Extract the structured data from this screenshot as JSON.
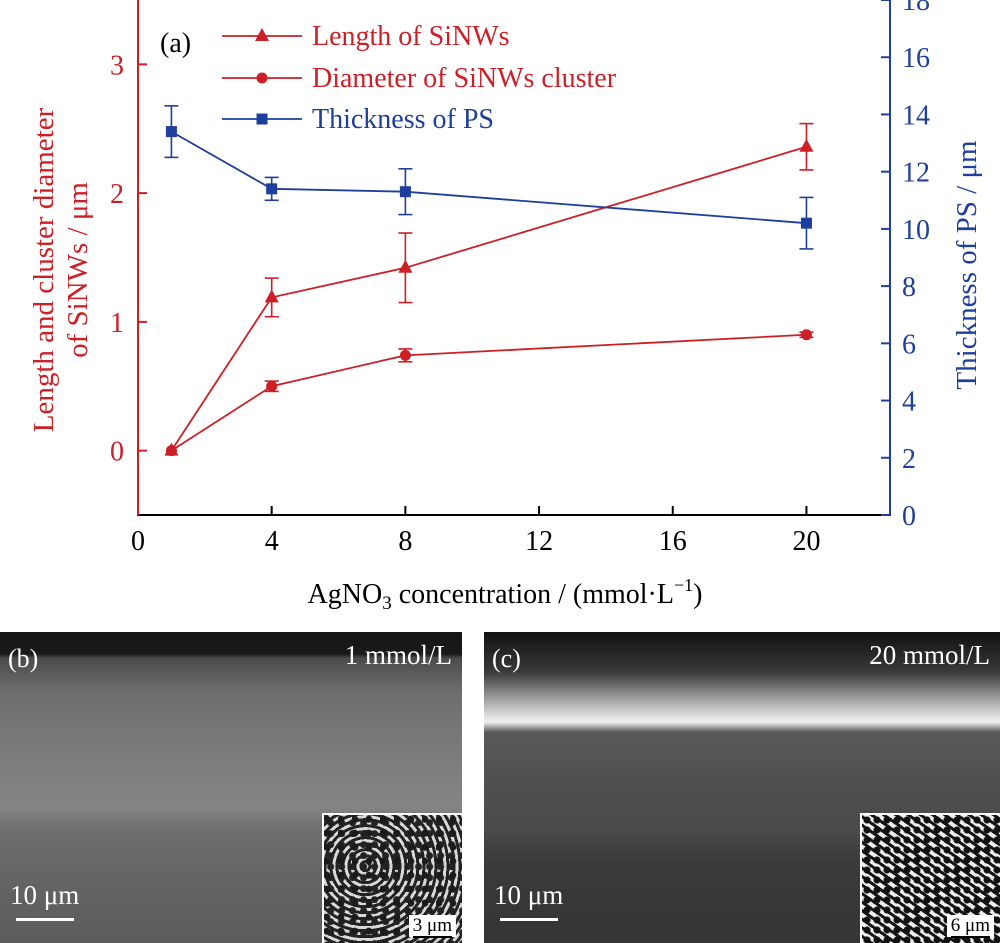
{
  "chart_data": {
    "type": "line",
    "panel_label": "(a)",
    "xlabel_main": "AgNO",
    "xlabel_sub": "3",
    "xlabel_rest": " concentration / (mmol·L",
    "xlabel_sup": "−1",
    "xlabel_end": ")",
    "ylabel_left_line1": "Length and cluster diameter",
    "ylabel_left_line2": "of SiNWs / μm",
    "ylabel_right": "Thickness of PS / μm",
    "xlim": [
      0,
      22.5
    ],
    "ylim_left": [
      -0.5,
      3.5
    ],
    "ylim_right": [
      0,
      18
    ],
    "x_ticks": [
      "0",
      "4",
      "8",
      "12",
      "16",
      "20"
    ],
    "y_left_ticks": [
      "0",
      "1",
      "2",
      "3"
    ],
    "y_right_ticks": [
      "0",
      "2",
      "4",
      "6",
      "8",
      "10",
      "12",
      "14",
      "16",
      "18"
    ],
    "legend_position": "top-left",
    "colors": {
      "red": "#cc1f26",
      "blue": "#1f3f9c"
    },
    "series": [
      {
        "name": "Length of SiNWs",
        "axis": "left",
        "marker": "triangle",
        "color": "#cc1f26",
        "x": [
          1,
          4,
          8,
          20
        ],
        "y": [
          0.0,
          1.19,
          1.42,
          2.36
        ],
        "err": [
          0.0,
          0.15,
          0.27,
          0.18
        ]
      },
      {
        "name": "Diameter of SiNWs cluster",
        "axis": "left",
        "marker": "circle",
        "color": "#cc1f26",
        "x": [
          1,
          4,
          8,
          20
        ],
        "y": [
          0.0,
          0.5,
          0.74,
          0.9
        ],
        "err": [
          0.0,
          0.04,
          0.05,
          0.02
        ]
      },
      {
        "name": "Thickness of PS",
        "axis": "right",
        "marker": "square",
        "color": "#1f3f9c",
        "x": [
          1,
          4,
          8,
          20
        ],
        "y": [
          13.4,
          11.4,
          11.3,
          10.2
        ],
        "err": [
          0.9,
          0.4,
          0.8,
          0.9
        ]
      }
    ]
  },
  "panels": {
    "b": {
      "label": "(b)",
      "concentration": "1 mmol/L",
      "scale": "10 μm",
      "inset_scale": "3 μm"
    },
    "c": {
      "label": "(c)",
      "concentration": "20 mmol/L",
      "scale": "10 μm",
      "inset_scale": "6 μm"
    }
  }
}
